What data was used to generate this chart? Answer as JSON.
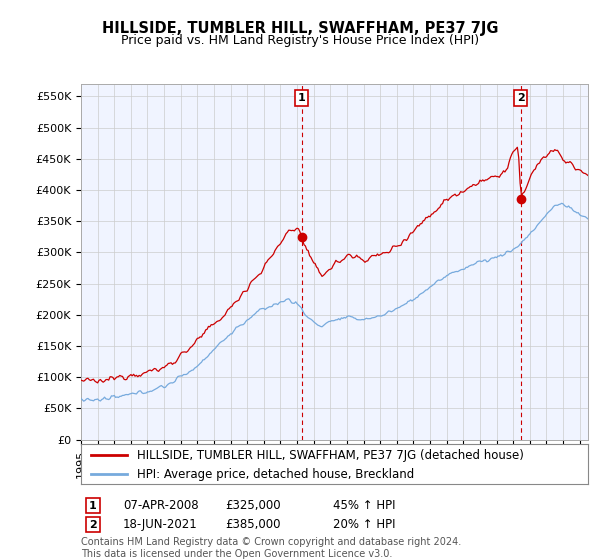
{
  "title": "HILLSIDE, TUMBLER HILL, SWAFFHAM, PE37 7JG",
  "subtitle": "Price paid vs. HM Land Registry's House Price Index (HPI)",
  "ylabel_ticks": [
    "£0",
    "£50K",
    "£100K",
    "£150K",
    "£200K",
    "£250K",
    "£300K",
    "£350K",
    "£400K",
    "£450K",
    "£500K",
    "£550K"
  ],
  "ylabel_values": [
    0,
    50000,
    100000,
    150000,
    200000,
    250000,
    300000,
    350000,
    400000,
    450000,
    500000,
    550000
  ],
  "ylim": [
    0,
    570000
  ],
  "xlim_start": 1995.0,
  "xlim_end": 2025.5,
  "red_line_color": "#cc0000",
  "blue_line_color": "#77aadd",
  "grid_color": "#cccccc",
  "bg_color": "#ffffff",
  "plot_bg_color": "#f0f4ff",
  "marker1_x": 2008.27,
  "marker1_y": 325000,
  "marker2_x": 2021.46,
  "marker2_y": 385000,
  "annotation1": "07-APR-2008",
  "annotation1_price": "£325,000",
  "annotation1_hpi": "45% ↑ HPI",
  "annotation2": "18-JUN-2021",
  "annotation2_price": "£385,000",
  "annotation2_hpi": "20% ↑ HPI",
  "legend_red": "HILLSIDE, TUMBLER HILL, SWAFFHAM, PE37 7JG (detached house)",
  "legend_blue": "HPI: Average price, detached house, Breckland",
  "footnote": "Contains HM Land Registry data © Crown copyright and database right 2024.\nThis data is licensed under the Open Government Licence v3.0.",
  "title_fontsize": 10.5,
  "subtitle_fontsize": 9,
  "tick_fontsize": 8,
  "legend_fontsize": 8.5,
  "footnote_fontsize": 7
}
